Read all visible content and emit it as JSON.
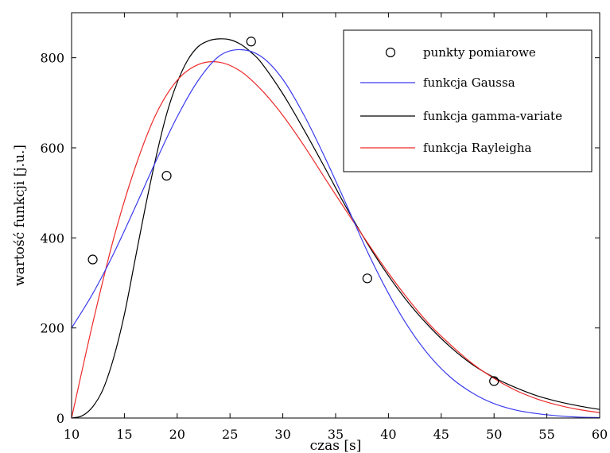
{
  "chart_data": {
    "type": "line",
    "xlabel": "czas [s]",
    "ylabel": "wartość funkcji [j.u.]",
    "xlim": [
      10,
      60
    ],
    "ylim": [
      0,
      900
    ],
    "xticks": [
      10,
      15,
      20,
      25,
      30,
      35,
      40,
      45,
      50,
      55,
      60
    ],
    "yticks": [
      0,
      200,
      400,
      600,
      800
    ],
    "grid": false,
    "legend_position": "top-right",
    "points": {
      "name": "punkty pomiarowe",
      "x": [
        12,
        19,
        27,
        38,
        50
      ],
      "y": [
        352,
        538,
        836,
        310,
        82
      ]
    },
    "series": [
      {
        "name": "funkcja Gaussa",
        "color": "#3a3af0",
        "x": [
          10,
          12,
          14,
          16,
          18,
          20,
          22,
          24,
          26,
          28,
          30,
          32,
          34,
          36,
          38,
          40,
          42,
          44,
          46,
          48,
          50,
          52,
          54,
          56,
          58,
          60
        ],
        "y": [
          200,
          276,
          366,
          467,
          571,
          669,
          750,
          804,
          818,
          802,
          752,
          673,
          578,
          475,
          370,
          277,
          198,
          135,
          88,
          55,
          32,
          18,
          10,
          5,
          2,
          1
        ]
      },
      {
        "name": "funkcja gamma-variate",
        "color": "#000000",
        "x": [
          10,
          11,
          12,
          13,
          14,
          15,
          16,
          17,
          18,
          19,
          20,
          21,
          22,
          23,
          24,
          25,
          26,
          27,
          28,
          30,
          32,
          34,
          36,
          38,
          40,
          42,
          44,
          46,
          48,
          50,
          52,
          54,
          56,
          58,
          60
        ],
        "y": [
          0,
          5,
          25,
          65,
          135,
          230,
          350,
          470,
          580,
          675,
          745,
          795,
          825,
          838,
          842,
          840,
          830,
          812,
          788,
          720,
          640,
          555,
          468,
          388,
          316,
          253,
          200,
          155,
          118,
          90,
          68,
          50,
          37,
          27,
          19
        ]
      },
      {
        "name": "funkcja Rayleigha",
        "color": "#ee2a2a",
        "x": [
          10,
          12,
          14,
          16,
          18,
          20,
          22,
          24,
          26,
          28,
          30,
          32,
          34,
          36,
          38,
          40,
          42,
          44,
          46,
          48,
          50,
          52,
          54,
          56,
          58,
          60
        ],
        "y": [
          0,
          210,
          400,
          555,
          675,
          750,
          785,
          790,
          770,
          728,
          672,
          605,
          532,
          460,
          390,
          322,
          260,
          205,
          160,
          120,
          88,
          62,
          43,
          29,
          19,
          12
        ]
      }
    ]
  }
}
